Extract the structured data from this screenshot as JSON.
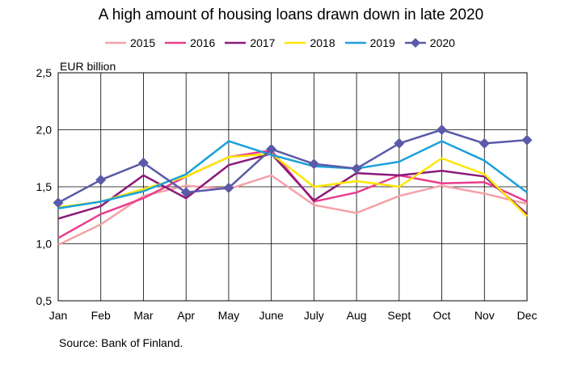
{
  "chart_data": {
    "type": "line",
    "title": "A high amount of housing loans drawn down in late 2020",
    "xlabel": "",
    "ylabel": "EUR billion",
    "categories": [
      "Jan",
      "Feb",
      "Mar",
      "Apr",
      "May",
      "June",
      "July",
      "Aug",
      "Sept",
      "Oct",
      "Nov",
      "Dec"
    ],
    "ylim": [
      0.5,
      2.5
    ],
    "yticks": [
      0.5,
      1.0,
      1.5,
      2.0,
      2.5
    ],
    "ytick_labels": [
      "0,5",
      "1,0",
      "1,5",
      "2,0",
      "2,5"
    ],
    "grid": true,
    "legend_position": "top",
    "series": [
      {
        "name": "2015",
        "color": "#f4a1a8",
        "marker": "none",
        "values": [
          0.99,
          1.17,
          1.42,
          1.51,
          1.48,
          1.6,
          1.34,
          1.27,
          1.42,
          1.51,
          1.44,
          1.35
        ]
      },
      {
        "name": "2016",
        "color": "#e83e8c",
        "marker": "none",
        "values": [
          1.05,
          1.26,
          1.4,
          1.59,
          1.76,
          1.82,
          1.37,
          1.45,
          1.6,
          1.53,
          1.54,
          1.37
        ]
      },
      {
        "name": "2017",
        "color": "#8b1a7a",
        "marker": "none",
        "values": [
          1.22,
          1.33,
          1.6,
          1.4,
          1.69,
          1.79,
          1.38,
          1.62,
          1.6,
          1.64,
          1.59,
          1.26
        ]
      },
      {
        "name": "2018",
        "color": "#ffe600",
        "marker": "none",
        "values": [
          1.32,
          1.37,
          1.48,
          1.59,
          1.76,
          1.79,
          1.5,
          1.55,
          1.5,
          1.75,
          1.61,
          1.24
        ]
      },
      {
        "name": "2019",
        "color": "#1ba1dc",
        "marker": "none",
        "values": [
          1.31,
          1.37,
          1.46,
          1.61,
          1.9,
          1.78,
          1.68,
          1.66,
          1.72,
          1.9,
          1.73,
          1.45
        ]
      },
      {
        "name": "2020",
        "color": "#5a5aa8",
        "marker": "diamond",
        "values": [
          1.36,
          1.56,
          1.71,
          1.45,
          1.49,
          1.83,
          1.7,
          1.66,
          1.88,
          2.0,
          1.88,
          1.91
        ]
      }
    ]
  },
  "footer": {
    "source": "Source: Bank of Finland."
  }
}
